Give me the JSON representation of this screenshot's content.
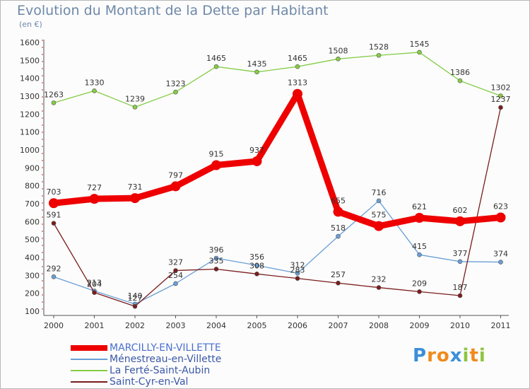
{
  "chart_data": {
    "type": "line",
    "title": "Evolution du Montant de la Dette par Habitant",
    "unit_label": "(en €)",
    "categories": [
      "2000",
      "2001",
      "2002",
      "2003",
      "2004",
      "2005",
      "2006",
      "2007",
      "2008",
      "2009",
      "2010",
      "2011"
    ],
    "ylim": [
      100,
      1600
    ],
    "yticks": [
      100,
      200,
      300,
      400,
      500,
      600,
      700,
      800,
      900,
      1000,
      1100,
      1200,
      1300,
      1400,
      1500,
      1600
    ],
    "grid": false,
    "legend_position": "bottom-left",
    "series": [
      {
        "name": "MARCILLY-EN-VILLETTE",
        "color": "#ee0000",
        "values": [
          703,
          727,
          731,
          797,
          915,
          937,
          1313,
          655,
          575,
          621,
          602,
          623
        ],
        "labels": [
          "703",
          "727",
          "731",
          "797",
          "915",
          "937",
          "1313",
          "655",
          "575",
          "621",
          "602",
          "623"
        ]
      },
      {
        "name": "Ménestreau-en-Villette",
        "color": "#6a9fd6",
        "values": [
          292,
          213,
          140,
          254,
          396,
          356,
          312,
          518,
          716,
          415,
          377,
          374
        ],
        "labels": [
          "292",
          "213",
          "140",
          "254",
          "396",
          "356",
          "312",
          "518",
          "716",
          "415",
          "377",
          "374"
        ]
      },
      {
        "name": "La Ferté-Saint-Aubin",
        "color": "#86cc45",
        "values": [
          1263,
          1330,
          1239,
          1323,
          1465,
          1435,
          1465,
          1508,
          1528,
          1545,
          1386,
          1302
        ],
        "labels": [
          "1263",
          "1330",
          "1239",
          "1323",
          "1465",
          "1435",
          "1465",
          "1508",
          "1528",
          "1545",
          "1386",
          "1302"
        ]
      },
      {
        "name": "Saint-Cyr-en-Val",
        "color": "#7a1c1c",
        "values": [
          591,
          204,
          127,
          327,
          335,
          308,
          283,
          257,
          232,
          209,
          187,
          1237
        ],
        "labels": [
          "591",
          "204",
          "127",
          "327",
          "335",
          "308",
          "283",
          "257",
          "232",
          "209",
          "187",
          "1237"
        ]
      }
    ]
  },
  "logo": {
    "letters": [
      "P",
      "r",
      "o",
      "x",
      "i",
      "t",
      "i"
    ],
    "colors": [
      "#3b8fd9",
      "#f08a1d",
      "#f08a1d",
      "#3b8fd9",
      "#8cc63f",
      "#f08a1d",
      "#8cc63f"
    ]
  }
}
